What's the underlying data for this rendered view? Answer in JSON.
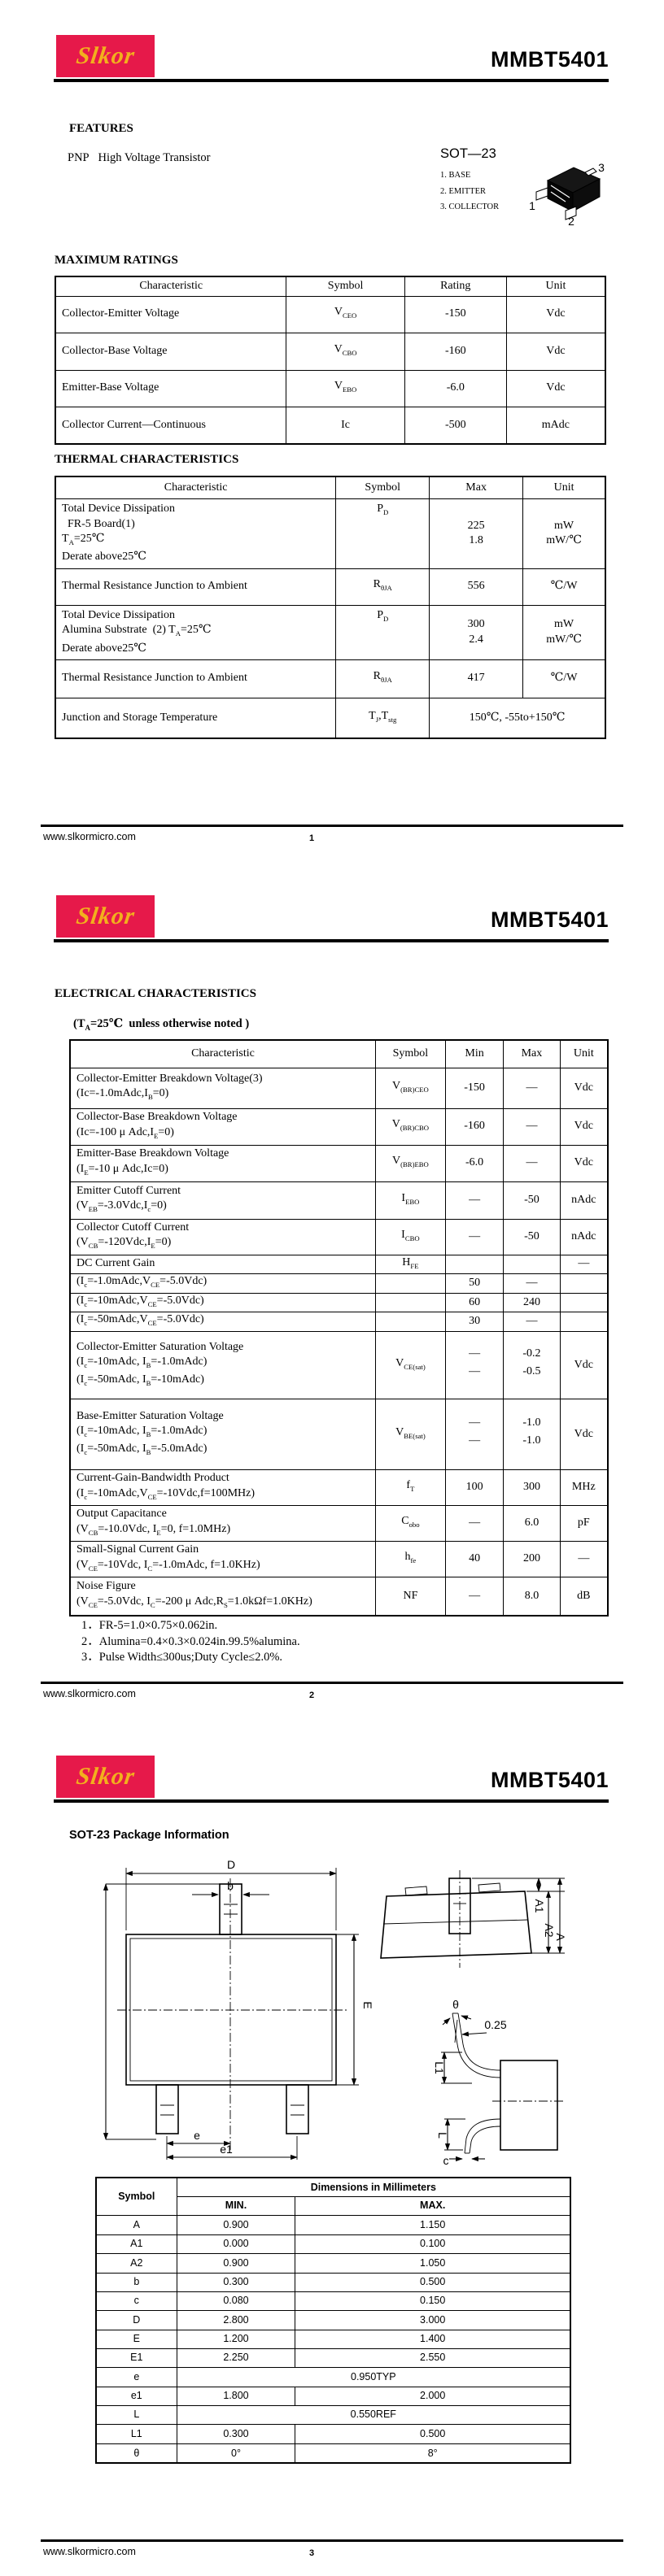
{
  "brand": {
    "logo_text": "Slkor",
    "part_number": "MMBT5401",
    "red": "#e6194a",
    "yellow": "#f2b01d"
  },
  "footer": {
    "site": "www.slkormicro.com",
    "pages": [
      "1",
      "2",
      "3"
    ]
  },
  "page1": {
    "features_title": "FEATURES",
    "description": "PNP   High Voltage Transistor",
    "package": {
      "name": "SOT—23",
      "pins": [
        "1. BASE",
        "2. EMITTER",
        "3. COLLECTOR"
      ],
      "pin_numbers": [
        "1",
        "2",
        "3"
      ]
    },
    "max_ratings": {
      "title": "MAXIMUM RATINGS",
      "widths": [
        42,
        21.5,
        18.5,
        18
      ],
      "rows": [
        {
          "h": 24,
          "cells": [
            {
              "t": "Characteristic"
            },
            {
              "t": "Symbol"
            },
            {
              "t": "Rating"
            },
            {
              "t": "Unit"
            }
          ]
        },
        {
          "h": 45,
          "cells": [
            {
              "t": "Collector-Emitter Voltage",
              "a": "l"
            },
            {
              "t": "V_{CEO}"
            },
            {
              "t": "-150"
            },
            {
              "t": "Vdc"
            }
          ]
        },
        {
          "h": 46,
          "cells": [
            {
              "t": "Collector-Base Voltage",
              "a": "l"
            },
            {
              "t": "V_{CBO}"
            },
            {
              "t": "-160"
            },
            {
              "t": "Vdc"
            }
          ]
        },
        {
          "h": 45,
          "cells": [
            {
              "t": "Emitter-Base Voltage",
              "a": "l"
            },
            {
              "t": "V_{EBO}"
            },
            {
              "t": "-6.0"
            },
            {
              "t": "Vdc"
            }
          ]
        },
        {
          "h": 46,
          "cells": [
            {
              "t": "Collector Current—Continuous",
              "a": "l"
            },
            {
              "t": "Ic"
            },
            {
              "t": "-500"
            },
            {
              "t": "mAdc"
            }
          ]
        }
      ]
    },
    "thermal": {
      "title": "THERMAL CHARACTERISTICS",
      "widths": [
        51,
        17,
        17,
        15
      ],
      "rows": [
        {
          "h": 27,
          "cells": [
            {
              "t": "Characteristic"
            },
            {
              "t": "Symbol"
            },
            {
              "t": "Max"
            },
            {
              "t": "Unit"
            }
          ]
        },
        {
          "h": 86,
          "cells": [
            {
              "t": [
                "Total Device Dissipation",
                "  FR-5 Board(1)",
                "T_{A}=25℃",
                "Derate above25℃"
              ],
              "a": "l"
            },
            {
              "t": "P_{D}",
              "va": "t"
            },
            {
              "t": [
                "225",
                "1.8"
              ],
              "sp": 1
            },
            {
              "t": [
                "mW",
                "mW/℃"
              ],
              "sp": 1
            }
          ]
        },
        {
          "h": 45,
          "cells": [
            {
              "t": "Thermal Resistance Junction to Ambient",
              "a": "l"
            },
            {
              "t": "R_{θJA}"
            },
            {
              "t": "556"
            },
            {
              "t": "℃/W"
            }
          ]
        },
        {
          "h": 67,
          "cells": [
            {
              "t": [
                "Total Device Dissipation",
                "Alumina Substrate  (2) T_{A}=25℃",
                "Derate above25℃"
              ],
              "a": "l"
            },
            {
              "t": "P_{D}",
              "va": "t"
            },
            {
              "t": [
                "300",
                "2.4"
              ],
              "sp": 1
            },
            {
              "t": [
                "mW",
                "mW/℃"
              ],
              "sp": 1
            }
          ]
        },
        {
          "h": 47,
          "cells": [
            {
              "t": "Thermal Resistance Junction to Ambient",
              "a": "l"
            },
            {
              "t": "R_{θJA}"
            },
            {
              "t": "417"
            },
            {
              "t": "℃/W"
            }
          ]
        },
        {
          "h": 50,
          "cells": [
            {
              "t": "Junction and Storage Temperature",
              "a": "l"
            },
            {
              "t": "T_{J},T_{stg}"
            },
            {
              "t": "150℃, -55to+150℃",
              "cs": 2
            }
          ]
        }
      ]
    }
  },
  "page2": {
    "title": "ELECTRICAL CHARACTERISTICS",
    "subtitle": "(T_{A}=25℃  unless otherwise noted )",
    "table": {
      "widths": [
        56.8,
        13,
        10.8,
        10.5,
        8.9
      ],
      "rows": [
        {
          "h": 34,
          "cells": [
            {
              "t": "Characteristic"
            },
            {
              "t": "Symbol"
            },
            {
              "t": "Min"
            },
            {
              "t": "Max"
            },
            {
              "t": "Unit"
            }
          ]
        },
        {
          "h": 50,
          "cells": [
            {
              "t": [
                "Collector-Emitter Breakdown Voltage(3)",
                "(Ic=-1.0mAdc,I_{B}=0)"
              ],
              "a": "l"
            },
            {
              "t": "V_{(BR)CEO}"
            },
            {
              "t": "-150"
            },
            {
              "t": "—"
            },
            {
              "t": "Vdc"
            }
          ]
        },
        {
          "h": 45,
          "cells": [
            {
              "t": [
                "Collector-Base Breakdown Voltage",
                "(Ic=-100 μ Adc,I_{E}=0)"
              ],
              "a": "l"
            },
            {
              "t": "V_{(BR)CBO}"
            },
            {
              "t": "-160"
            },
            {
              "t": "—"
            },
            {
              "t": "Vdc"
            }
          ]
        },
        {
          "h": 45,
          "cells": [
            {
              "t": [
                "Emitter-Base Breakdown Voltage",
                "(I_{E}=-10 μ Adc,Ic=0)"
              ],
              "a": "l"
            },
            {
              "t": "V_{(BR)EBO}"
            },
            {
              "t": "-6.0"
            },
            {
              "t": "—"
            },
            {
              "t": "Vdc"
            }
          ]
        },
        {
          "h": 46,
          "cells": [
            {
              "t": [
                "Emitter Cutoff Current",
                "(V_{EB}=-3.0Vdc,I_{c}=0)"
              ],
              "a": "l"
            },
            {
              "t": "I_{EBO}"
            },
            {
              "t": "—"
            },
            {
              "t": "-50"
            },
            {
              "t": "nAdc"
            }
          ]
        },
        {
          "h": 44,
          "cells": [
            {
              "t": [
                "Collector Cutoff Current",
                "(V_{CB}=-120Vdc,I_{E}=0)"
              ],
              "a": "l"
            },
            {
              "t": "I_{CBO}"
            },
            {
              "t": "—"
            },
            {
              "t": "-50"
            },
            {
              "t": "nAdc"
            }
          ]
        },
        {
          "h": 23,
          "cells": [
            {
              "t": "DC Current Gain",
              "a": "l"
            },
            {
              "t": "H_{FE}"
            },
            {
              "t": ""
            },
            {
              "t": ""
            },
            {
              "t": "—"
            }
          ]
        },
        {
          "h": 24,
          "cells": [
            {
              "t": "(I_{c}=-1.0mAdc,V_{CE}=-5.0Vdc)",
              "a": "l"
            },
            {
              "t": ""
            },
            {
              "t": "50"
            },
            {
              "t": "—"
            },
            {
              "t": ""
            }
          ]
        },
        {
          "h": 23,
          "cells": [
            {
              "t": "(I_{c}=-10mAdc,V_{CE}=-5.0Vdc)",
              "a": "l"
            },
            {
              "t": ""
            },
            {
              "t": "60"
            },
            {
              "t": "240"
            },
            {
              "t": ""
            }
          ]
        },
        {
          "h": 24,
          "cells": [
            {
              "t": "(I_{c}=-50mAdc,V_{CE}=-5.0Vdc)",
              "a": "l"
            },
            {
              "t": ""
            },
            {
              "t": "30"
            },
            {
              "t": "—"
            },
            {
              "t": ""
            }
          ]
        },
        {
          "h": 83,
          "cells": [
            {
              "t": [
                "Collector-Emitter Saturation Voltage",
                "(I_{c}=-10mAdc, I_{B}=-1.0mAdc)",
                "(I_{c}=-50mAdc, I_{B}=-10mAdc)"
              ],
              "a": "l"
            },
            {
              "t": "V_{CE(sat)}"
            },
            {
              "t": [
                "—",
                "—"
              ],
              "jb": 1
            },
            {
              "t": [
                "-0.2",
                "-0.5"
              ],
              "jb": 1
            },
            {
              "t": "Vdc"
            }
          ]
        },
        {
          "h": 87,
          "cells": [
            {
              "t": [
                "Base-Emitter Saturation Voltage",
                "(I_{c}=-10mAdc, I_{B}=-1.0mAdc)",
                "(I_{c}=-50mAdc, I_{B}=-5.0mAdc)"
              ],
              "a": "l"
            },
            {
              "t": "V_{BE(sat)}"
            },
            {
              "t": [
                "—",
                "—"
              ],
              "jb": 1
            },
            {
              "t": [
                "-1.0",
                "-1.0"
              ],
              "jb": 1
            },
            {
              "t": "Vdc"
            }
          ]
        },
        {
          "h": 44,
          "cells": [
            {
              "t": [
                "Current-Gain-Bandwidth Product",
                "(I_{c}=-10mAdc,V_{CE}=-10Vdc,f=100MHz)"
              ],
              "a": "l"
            },
            {
              "t": "f_{T}"
            },
            {
              "t": "100"
            },
            {
              "t": "300"
            },
            {
              "t": "MHz"
            }
          ]
        },
        {
          "h": 44,
          "cells": [
            {
              "t": [
                "Output Capacitance",
                "(V_{CB}=-10.0Vdc, I_{E}=0, f=1.0MHz)"
              ],
              "a": "l"
            },
            {
              "t": "C_{obo}"
            },
            {
              "t": "—"
            },
            {
              "t": "6.0"
            },
            {
              "t": "pF"
            }
          ]
        },
        {
          "h": 44,
          "cells": [
            {
              "t": [
                "Small-Signal Current Gain",
                "(V_{CE}=-10Vdc, I_{C}=-1.0mAdc, f=1.0KHz)"
              ],
              "a": "l"
            },
            {
              "t": "h_{fe}"
            },
            {
              "t": "40"
            },
            {
              "t": "200"
            },
            {
              "t": "—"
            }
          ]
        },
        {
          "h": 47,
          "cells": [
            {
              "t": [
                "Noise Figure",
                "(V_{CE}=-5.0Vdc, I_{C}=-200 μ Adc,R_{S}=1.0kΩf=1.0KHz)"
              ],
              "a": "l"
            },
            {
              "t": "NF"
            },
            {
              "t": "—"
            },
            {
              "t": "8.0"
            },
            {
              "t": "dB"
            }
          ]
        }
      ]
    },
    "notes": [
      "1．FR-5=1.0×0.75×0.062in.",
      "2．Alumina=0.4×0.3×0.024in.99.5%alumina.",
      "3．Pulse Width≤300us;Duty Cycle≤2.0%."
    ]
  },
  "page3": {
    "title": "SOT-23 Package Information",
    "labels": {
      "D": "D",
      "b": "b",
      "E": "E",
      "e": "e",
      "e1": "e1",
      "A": "A",
      "A1": "A1",
      "A2": "A2",
      "theta": "θ",
      "gauge": "0.25",
      "L": "L",
      "L1": "L1",
      "c": "c"
    },
    "dims": {
      "widths": [
        17,
        25,
        58
      ],
      "rows": [
        {
          "h": 23,
          "cells": [
            {
              "t": "Symbol",
              "b": 1,
              "rs": 2
            },
            {
              "t": "Dimensions in Millimeters",
              "b": 1,
              "cs": 2
            }
          ]
        },
        {
          "h": 23,
          "cells": [
            {
              "t": "MIN.",
              "b": 1
            },
            {
              "t": "MAX.",
              "b": 1
            }
          ]
        },
        {
          "h": 24,
          "cells": [
            {
              "t": "A"
            },
            {
              "t": "0.900"
            },
            {
              "t": "1.150"
            }
          ]
        },
        {
          "h": 23,
          "cells": [
            {
              "t": "A1"
            },
            {
              "t": "0.000"
            },
            {
              "t": "0.100"
            }
          ]
        },
        {
          "h": 24,
          "cells": [
            {
              "t": "A2"
            },
            {
              "t": "0.900"
            },
            {
              "t": "1.050"
            }
          ]
        },
        {
          "h": 23,
          "cells": [
            {
              "t": "b"
            },
            {
              "t": "0.300"
            },
            {
              "t": "0.500"
            }
          ]
        },
        {
          "h": 23,
          "cells": [
            {
              "t": "c"
            },
            {
              "t": "0.080"
            },
            {
              "t": "0.150"
            }
          ]
        },
        {
          "h": 24,
          "cells": [
            {
              "t": "D"
            },
            {
              "t": "2.800"
            },
            {
              "t": "3.000"
            }
          ]
        },
        {
          "h": 23,
          "cells": [
            {
              "t": "E"
            },
            {
              "t": "1.200"
            },
            {
              "t": "1.400"
            }
          ]
        },
        {
          "h": 23,
          "cells": [
            {
              "t": "E1"
            },
            {
              "t": "2.250"
            },
            {
              "t": "2.550"
            }
          ]
        },
        {
          "h": 24,
          "cells": [
            {
              "t": "e"
            },
            {
              "t": "0.950TYP",
              "cs": 2
            }
          ]
        },
        {
          "h": 23,
          "cells": [
            {
              "t": "e1"
            },
            {
              "t": "1.800"
            },
            {
              "t": "2.000"
            }
          ]
        },
        {
          "h": 23,
          "cells": [
            {
              "t": "L"
            },
            {
              "t": "0.550REF",
              "cs": 2
            }
          ]
        },
        {
          "h": 24,
          "cells": [
            {
              "t": "L1"
            },
            {
              "t": "0.300"
            },
            {
              "t": "0.500"
            }
          ]
        },
        {
          "h": 24,
          "cells": [
            {
              "t": "θ"
            },
            {
              "t": "0°"
            },
            {
              "t": "8°"
            }
          ]
        }
      ]
    }
  }
}
